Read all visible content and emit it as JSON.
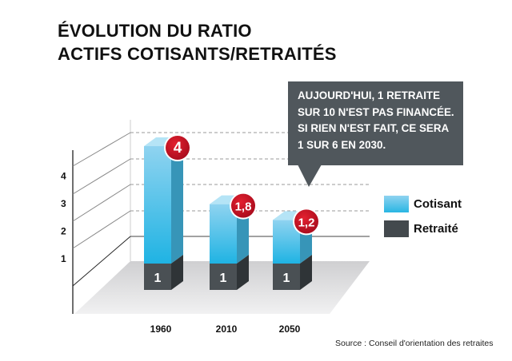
{
  "title": [
    "ÉVOLUTION DU RATIO",
    "ACTIFS COTISANTS/RETRAITÉS"
  ],
  "callout": [
    "AUJOURD'HUI, 1 RETRAITE",
    "SUR 10 N'EST PAS FINANCÉE.",
    "SI RIEN N'EST FAIT, CE SERA",
    "1 SUR 6 EN 2030."
  ],
  "source": "Source : Conseil d'orientation des retraites",
  "chart_data": {
    "type": "bar",
    "stacked": true,
    "categories": [
      "1960",
      "2010",
      "2050"
    ],
    "series": [
      {
        "name": "Retraité",
        "values": [
          1,
          1,
          1
        ],
        "labels": [
          "1",
          "1",
          "1"
        ],
        "color": "#43494d"
      },
      {
        "name": "Cotisant",
        "values": [
          4,
          1.8,
          1.2
        ],
        "labels": [
          "4",
          "1,8",
          "1,2"
        ],
        "color": "#29b6e3"
      }
    ],
    "yticks": [
      "1",
      "2",
      "3",
      "4"
    ],
    "legend": "right",
    "label_color": "#c8102e"
  }
}
